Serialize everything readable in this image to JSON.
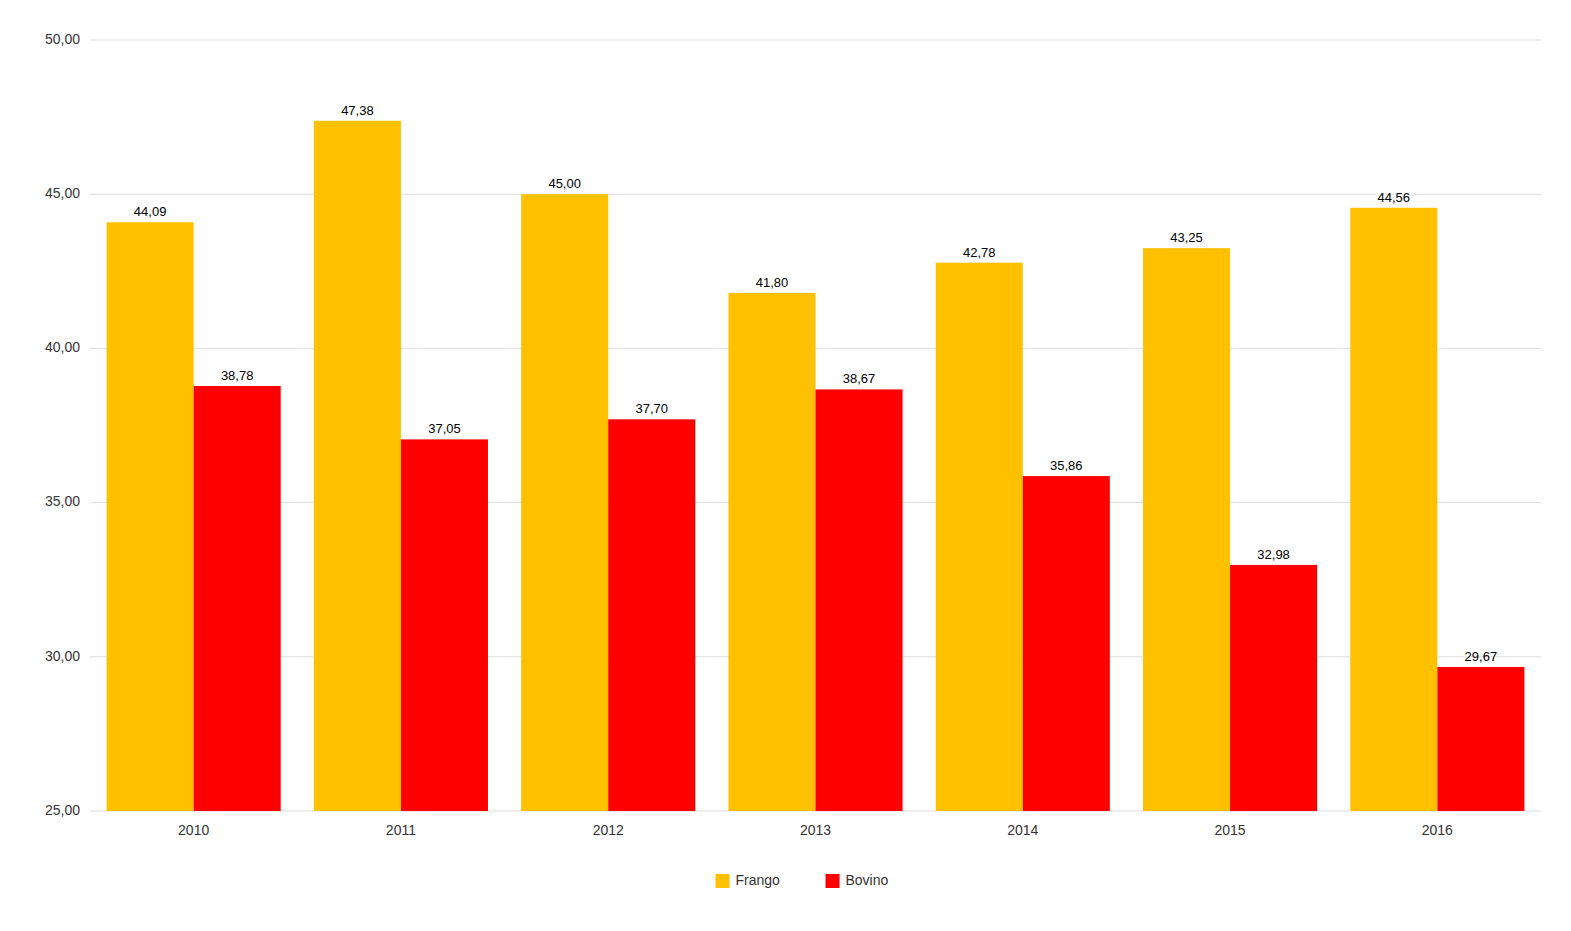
{
  "chart_data": {
    "type": "bar",
    "categories": [
      "2010",
      "2011",
      "2012",
      "2013",
      "2014",
      "2015",
      "2016"
    ],
    "series": [
      {
        "name": "Frango",
        "color": "#FFC000",
        "values": [
          44.09,
          47.38,
          45.0,
          41.8,
          42.78,
          43.25,
          44.56
        ],
        "value_labels": [
          "44,09",
          "47,38",
          "45,00",
          "41,80",
          "42,78",
          "43,25",
          "44,56"
        ]
      },
      {
        "name": "Bovino",
        "color": "#FF0000",
        "values": [
          38.78,
          37.05,
          37.7,
          38.67,
          35.86,
          32.98,
          29.67
        ],
        "value_labels": [
          "38,78",
          "37,05",
          "37,70",
          "38,67",
          "35,86",
          "32,98",
          "29,67"
        ]
      }
    ],
    "ylim": [
      25.0,
      50.0
    ],
    "yticks": [
      {
        "value": 25.0,
        "label": "25,00"
      },
      {
        "value": 30.0,
        "label": "30,00"
      },
      {
        "value": 35.0,
        "label": "35,00"
      },
      {
        "value": 40.0,
        "label": "40,00"
      },
      {
        "value": 45.0,
        "label": "45,00"
      },
      {
        "value": 50.0,
        "label": "50,00"
      }
    ],
    "grid": true,
    "legend": "bottom",
    "data_labels": true
  }
}
